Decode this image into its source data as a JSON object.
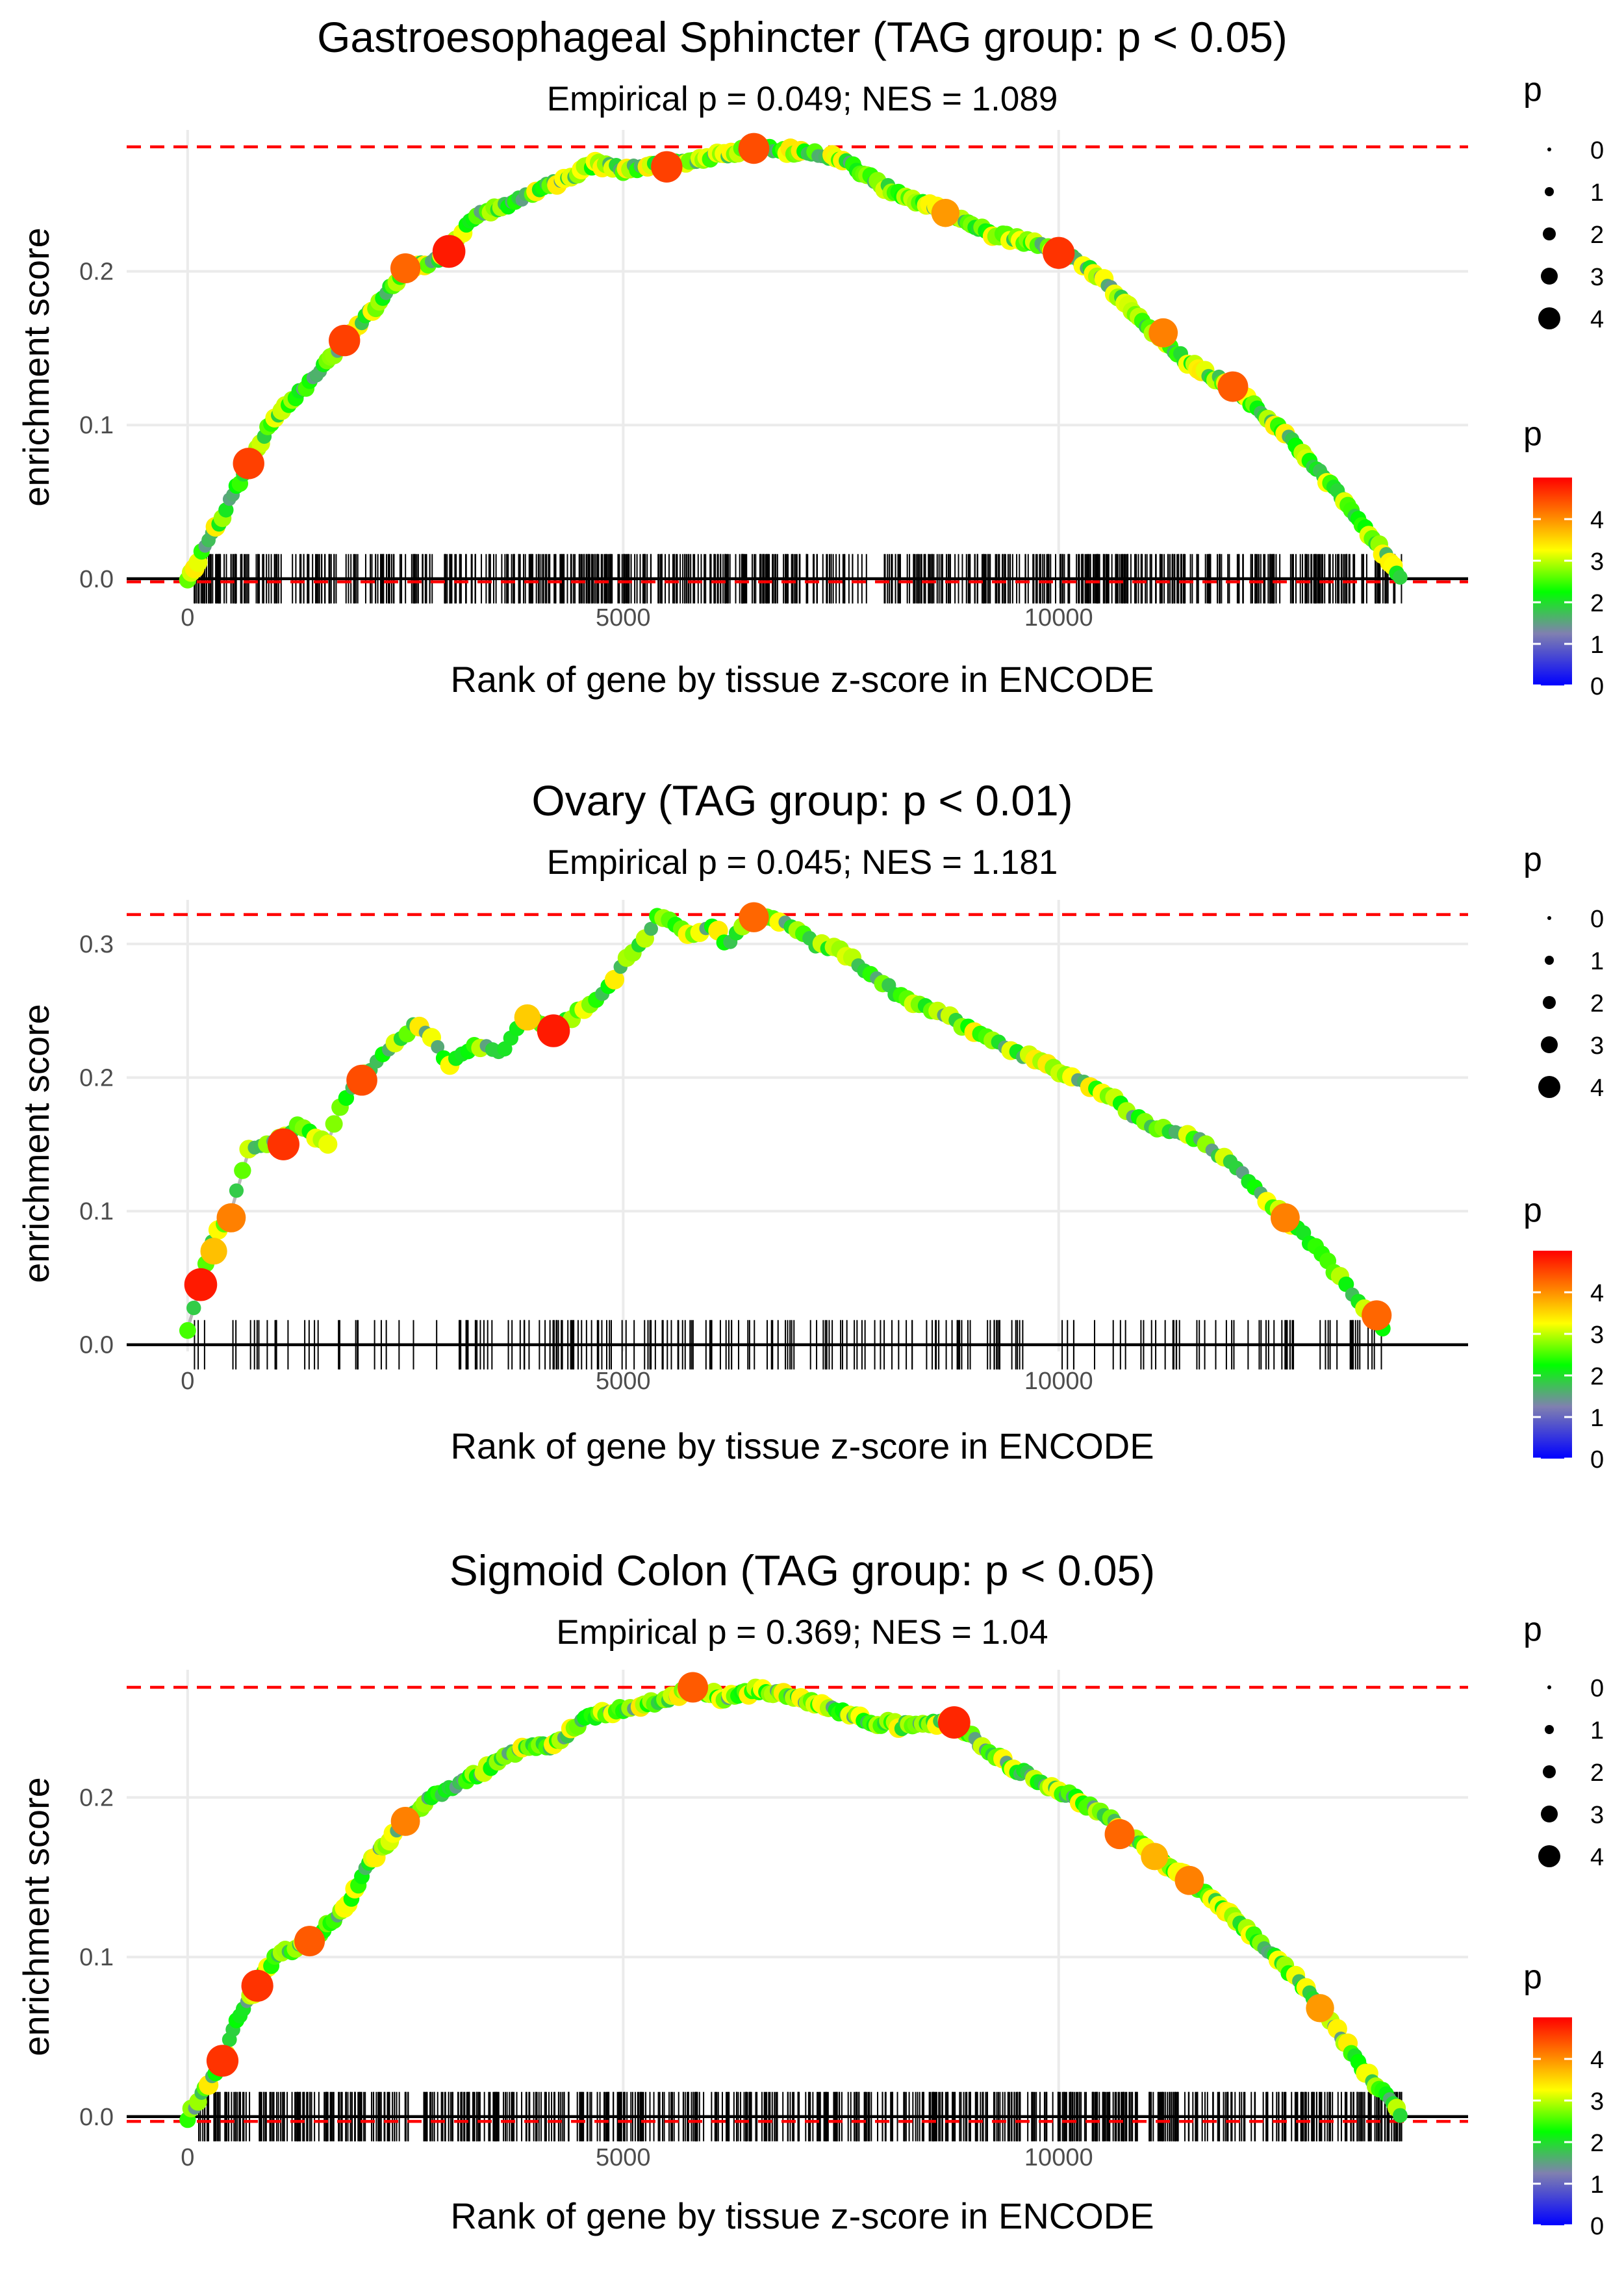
{
  "figure": {
    "common": {
      "xlabel": "Rank of gene by tissue z-score in ENCODE",
      "ylabel": "enrichment score",
      "x_ticks": [
        "0",
        "5000",
        "10000"
      ],
      "legend_size_title": "p",
      "legend_size_labels": [
        "0",
        "1",
        "2",
        "3",
        "4"
      ],
      "legend_color_title": "p",
      "legend_color_labels": [
        "0",
        "1",
        "2",
        "3",
        "4"
      ],
      "colors": {
        "low": "#0000ff",
        "mid1": "#8080b0",
        "mid2": "#00ff00",
        "mid3": "#ffff00",
        "high": "#ff0000",
        "max_line": "#ff0000",
        "curve": "#b8b8b8"
      }
    }
  },
  "chart_data": [
    {
      "type": "line",
      "title": "Gastroesophageal Sphincter (TAG group: p < 0.05)",
      "subtitle": "Empirical p = 0.049; NES = 1.089",
      "xlabel": "Rank of gene by tissue z-score in ENCODE",
      "ylabel": "enrichment score",
      "xlim": [
        -700,
        14700
      ],
      "ylim": [
        -0.006,
        0.292
      ],
      "y_ticks": [
        0.0,
        0.1,
        0.2
      ],
      "y_tick_labels": [
        "0.0",
        "0.1",
        "0.2"
      ],
      "x_ticks": [
        0,
        5000,
        10000
      ],
      "x_tick_labels": [
        "0",
        "5000",
        "10000"
      ],
      "max_es": 0.281,
      "min_es": -0.002,
      "rug_density": 1.0,
      "curve": [
        [
          0,
          0
        ],
        [
          300,
          0.03
        ],
        [
          700,
          0.075
        ],
        [
          1000,
          0.105
        ],
        [
          1400,
          0.128
        ],
        [
          1800,
          0.155
        ],
        [
          2200,
          0.18
        ],
        [
          2500,
          0.202
        ],
        [
          2800,
          0.205
        ],
        [
          3000,
          0.213
        ],
        [
          3300,
          0.237
        ],
        [
          3600,
          0.242
        ],
        [
          4000,
          0.252
        ],
        [
          4400,
          0.262
        ],
        [
          4700,
          0.27
        ],
        [
          5000,
          0.266
        ],
        [
          5500,
          0.27
        ],
        [
          6000,
          0.274
        ],
        [
          6500,
          0.281
        ],
        [
          7000,
          0.278
        ],
        [
          7500,
          0.273
        ],
        [
          8000,
          0.255
        ],
        [
          8700,
          0.238
        ],
        [
          9200,
          0.225
        ],
        [
          9700,
          0.218
        ],
        [
          10100,
          0.212
        ],
        [
          10500,
          0.195
        ],
        [
          11000,
          0.165
        ],
        [
          11500,
          0.14
        ],
        [
          12000,
          0.125
        ],
        [
          12500,
          0.1
        ],
        [
          13000,
          0.07
        ],
        [
          13500,
          0.035
        ],
        [
          13950,
          0.0
        ]
      ],
      "highlights": [
        [
          700,
          0.075,
          4.5
        ],
        [
          1800,
          0.155,
          4.5
        ],
        [
          2500,
          0.202,
          4.2
        ],
        [
          3000,
          0.213,
          4.8
        ],
        [
          5500,
          0.268,
          4.5
        ],
        [
          6500,
          0.28,
          4.4
        ],
        [
          10000,
          0.212,
          4.6
        ],
        [
          11200,
          0.16,
          4.0
        ],
        [
          12000,
          0.125,
          4.3
        ],
        [
          8700,
          0.238,
          3.8
        ]
      ]
    },
    {
      "type": "line",
      "title": "Ovary (TAG group: p < 0.01)",
      "subtitle": "Empirical p = 0.045; NES = 1.181",
      "xlabel": "Rank of gene by tissue z-score in ENCODE",
      "ylabel": "enrichment score",
      "xlim": [
        -700,
        14700
      ],
      "ylim": [
        -0.005,
        0.333
      ],
      "y_ticks": [
        0.0,
        0.1,
        0.2,
        0.3
      ],
      "y_tick_labels": [
        "0.0",
        "0.1",
        "0.2",
        "0.3"
      ],
      "x_ticks": [
        0,
        5000,
        10000
      ],
      "x_tick_labels": [
        "0",
        "5000",
        "10000"
      ],
      "max_es": 0.322,
      "min_es": null,
      "rug_density": 0.35,
      "curve": [
        [
          0,
          0.012
        ],
        [
          150,
          0.045
        ],
        [
          300,
          0.08
        ],
        [
          500,
          0.1
        ],
        [
          700,
          0.145
        ],
        [
          900,
          0.15
        ],
        [
          1100,
          0.155
        ],
        [
          1300,
          0.165
        ],
        [
          1600,
          0.15
        ],
        [
          1800,
          0.185
        ],
        [
          2000,
          0.2
        ],
        [
          2300,
          0.22
        ],
        [
          2600,
          0.24
        ],
        [
          2800,
          0.23
        ],
        [
          3000,
          0.21
        ],
        [
          3300,
          0.225
        ],
        [
          3600,
          0.22
        ],
        [
          3900,
          0.245
        ],
        [
          4200,
          0.235
        ],
        [
          4500,
          0.25
        ],
        [
          4800,
          0.265
        ],
        [
          5000,
          0.285
        ],
        [
          5200,
          0.3
        ],
        [
          5400,
          0.322
        ],
        [
          5600,
          0.315
        ],
        [
          5800,
          0.305
        ],
        [
          6000,
          0.315
        ],
        [
          6200,
          0.3
        ],
        [
          6500,
          0.32
        ],
        [
          6800,
          0.318
        ],
        [
          7200,
          0.3
        ],
        [
          7500,
          0.295
        ],
        [
          7800,
          0.28
        ],
        [
          8200,
          0.26
        ],
        [
          8600,
          0.25
        ],
        [
          9000,
          0.235
        ],
        [
          9500,
          0.22
        ],
        [
          10000,
          0.205
        ],
        [
          10500,
          0.19
        ],
        [
          11000,
          0.165
        ],
        [
          11500,
          0.158
        ],
        [
          12000,
          0.135
        ],
        [
          12600,
          0.095
        ],
        [
          13000,
          0.07
        ],
        [
          13400,
          0.035
        ],
        [
          13750,
          0.01
        ]
      ],
      "highlights": [
        [
          150,
          0.045,
          4.8
        ],
        [
          300,
          0.07,
          3.5
        ],
        [
          500,
          0.095,
          4.0
        ],
        [
          1100,
          0.15,
          4.6
        ],
        [
          2000,
          0.198,
          4.4
        ],
        [
          4200,
          0.235,
          4.8
        ],
        [
          6500,
          0.32,
          4.2
        ],
        [
          12600,
          0.095,
          4.0
        ],
        [
          13650,
          0.022,
          4.2
        ],
        [
          3900,
          0.245,
          3.4
        ]
      ]
    },
    {
      "type": "line",
      "title": "Sigmoid Colon (TAG group: p < 0.05)",
      "subtitle": "Empirical p = 0.369; NES = 1.04",
      "xlabel": "Rank of gene by tissue z-score in ENCODE",
      "ylabel": "enrichment score",
      "xlim": [
        -700,
        14700
      ],
      "ylim": [
        -0.007,
        0.28
      ],
      "y_ticks": [
        0.0,
        0.1,
        0.2
      ],
      "y_tick_labels": [
        "0.0",
        "0.1",
        "0.2"
      ],
      "x_ticks": [
        0,
        5000,
        10000
      ],
      "x_tick_labels": [
        "0",
        "5000",
        "10000"
      ],
      "max_es": 0.269,
      "min_es": -0.003,
      "rug_density": 1.0,
      "curve": [
        [
          0,
          0
        ],
        [
          400,
          0.035
        ],
        [
          600,
          0.065
        ],
        [
          800,
          0.082
        ],
        [
          1000,
          0.1
        ],
        [
          1400,
          0.11
        ],
        [
          1800,
          0.13
        ],
        [
          2100,
          0.16
        ],
        [
          2500,
          0.185
        ],
        [
          2800,
          0.2
        ],
        [
          3100,
          0.208
        ],
        [
          3500,
          0.22
        ],
        [
          3800,
          0.23
        ],
        [
          4200,
          0.233
        ],
        [
          4600,
          0.25
        ],
        [
          5000,
          0.255
        ],
        [
          5500,
          0.262
        ],
        [
          5800,
          0.269
        ],
        [
          6200,
          0.262
        ],
        [
          6600,
          0.268
        ],
        [
          7000,
          0.262
        ],
        [
          7400,
          0.255
        ],
        [
          7800,
          0.248
        ],
        [
          8200,
          0.245
        ],
        [
          8800,
          0.248
        ],
        [
          9200,
          0.228
        ],
        [
          9600,
          0.215
        ],
        [
          10000,
          0.205
        ],
        [
          10500,
          0.19
        ],
        [
          11000,
          0.168
        ],
        [
          11500,
          0.148
        ],
        [
          12000,
          0.125
        ],
        [
          12500,
          0.1
        ],
        [
          13000,
          0.07
        ],
        [
          13500,
          0.03
        ],
        [
          13950,
          0.0
        ]
      ],
      "highlights": [
        [
          400,
          0.035,
          4.6
        ],
        [
          800,
          0.082,
          4.6
        ],
        [
          1400,
          0.11,
          4.3
        ],
        [
          2500,
          0.185,
          4.0
        ],
        [
          5800,
          0.269,
          4.3
        ],
        [
          8800,
          0.247,
          4.7
        ],
        [
          10700,
          0.177,
          4.2
        ],
        [
          11500,
          0.148,
          4.0
        ],
        [
          13000,
          0.068,
          3.8
        ],
        [
          11100,
          0.163,
          3.6
        ]
      ]
    }
  ]
}
